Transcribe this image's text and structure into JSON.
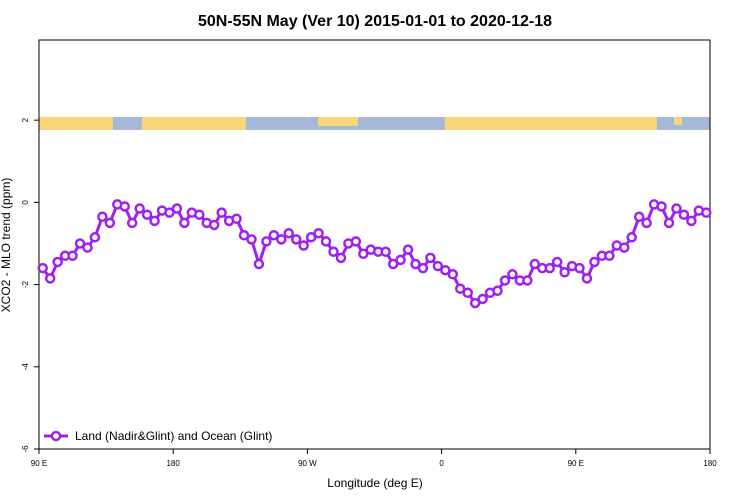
{
  "chart_data": {
    "type": "line",
    "title": "50N-55N May (Ver 10)   2015-01-01 to 2020-12-18",
    "x_label": "Longitude (deg E)",
    "y_label": "XCO2 - MLO trend (ppm)",
    "xlim": [
      90,
      540
    ],
    "ylim": [
      -6,
      3.95
    ],
    "xticks": [
      90,
      180,
      {
        "value": 270,
        "label": "90 W"
      },
      {
        "value": 360,
        "label": "0"
      },
      {
        "value": 450,
        "label": "90 E"
      },
      {
        "value": 540,
        "label": "180"
      }
    ],
    "xtick_first_label": "90 E",
    "yticks": [
      -6,
      -4,
      -2,
      0,
      2
    ],
    "grid": false,
    "legend": "bottom-left",
    "series": [
      {
        "name": "Land (Nadir&Glint) and Ocean (Glint)",
        "color": "#a020f0",
        "x": [
          92.5,
          97.5,
          102.5,
          107.5,
          112.5,
          117.5,
          122.5,
          127.5,
          132.5,
          137.5,
          142.5,
          147.5,
          152.5,
          157.5,
          162.5,
          167.5,
          172.5,
          177.5,
          182.5,
          187.5,
          192.5,
          197.5,
          202.5,
          207.5,
          212.5,
          217.5,
          222.5,
          227.5,
          232.5,
          237.5,
          242.5,
          247.5,
          252.5,
          257.5,
          262.5,
          267.5,
          272.5,
          277.5,
          282.5,
          287.5,
          292.5,
          297.5,
          302.5,
          307.5,
          312.5,
          317.5,
          322.5,
          327.5,
          332.5,
          337.5,
          342.5,
          347.5,
          352.5,
          357.5,
          362.5,
          367.5,
          372.5,
          377.5,
          382.5,
          387.5,
          392.5,
          397.5,
          402.5,
          407.5,
          412.5,
          417.5,
          422.5,
          427.5,
          432.5,
          437.5,
          442.5,
          447.5,
          452.5,
          457.5,
          462.5,
          467.5,
          472.5,
          477.5,
          482.5,
          487.5,
          492.5,
          497.5,
          502.5,
          507.5,
          512.5,
          517.5,
          522.5,
          527.5,
          532.5,
          537.5
        ],
        "values": [
          -1.6,
          -1.85,
          -1.45,
          -1.3,
          -1.3,
          -1.0,
          -1.1,
          -0.85,
          -0.35,
          -0.5,
          -0.05,
          -0.1,
          -0.5,
          -0.15,
          -0.3,
          -0.45,
          -0.2,
          -0.25,
          -0.15,
          -0.5,
          -0.25,
          -0.3,
          -0.5,
          -0.55,
          -0.25,
          -0.45,
          -0.4,
          -0.8,
          -0.9,
          -1.5,
          -0.95,
          -0.8,
          -0.9,
          -0.75,
          -0.9,
          -1.05,
          -0.85,
          -0.75,
          -0.95,
          -1.2,
          -1.35,
          -1.0,
          -0.95,
          -1.25,
          -1.15,
          -1.2,
          -1.2,
          -1.5,
          -1.4,
          -1.15,
          -1.5,
          -1.6,
          -1.35,
          -1.55,
          -1.65,
          -1.75,
          -2.1,
          -2.2,
          -2.45,
          -2.35,
          -2.2,
          -2.15,
          -1.9,
          -1.75,
          -1.9,
          -1.9,
          -1.5,
          -1.6,
          -1.6,
          -1.45,
          -1.7,
          -1.55,
          -1.6,
          -1.85,
          -1.45,
          -1.3,
          -1.3,
          -1.05,
          -1.1,
          -0.85,
          -0.35,
          -0.5,
          -0.05,
          -0.1,
          -0.5,
          -0.15,
          -0.3,
          -0.45,
          -0.2,
          -0.25
        ]
      }
    ]
  }
}
